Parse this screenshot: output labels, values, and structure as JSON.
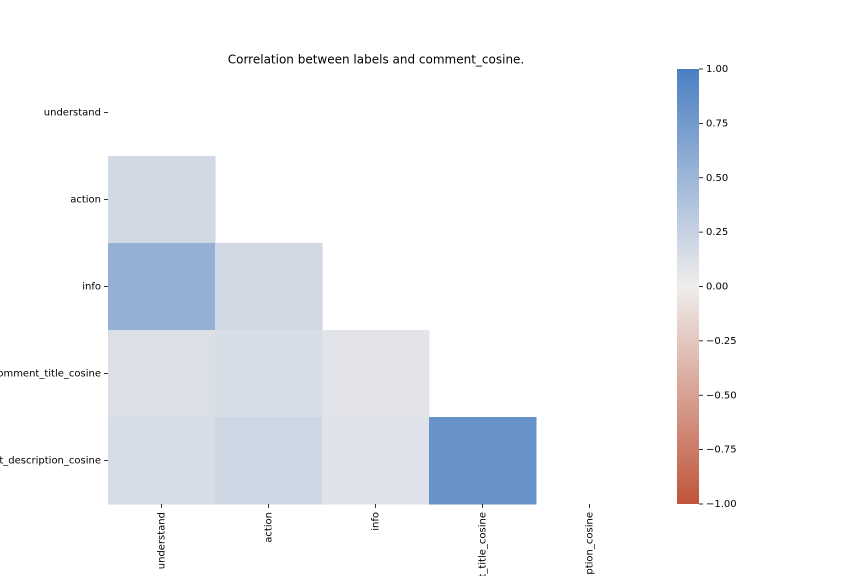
{
  "chart_data": {
    "type": "heatmap",
    "title": "Correlation between labels and comment_cosine.",
    "x_categories": [
      "understand",
      "action",
      "info",
      "t_title_cosine",
      "ption_cosine"
    ],
    "y_categories": [
      "understand",
      "action",
      "info",
      "omment_title_cosine",
      "t_description_cosine"
    ],
    "values": [
      [
        null,
        null,
        null,
        null,
        null
      ],
      [
        0.18,
        null,
        null,
        null,
        null
      ],
      [
        0.55,
        0.18,
        null,
        null,
        null
      ],
      [
        0.12,
        0.15,
        0.08,
        null,
        null
      ],
      [
        0.15,
        0.2,
        0.1,
        0.82,
        null
      ]
    ],
    "colormap": [
      "#c0553a",
      "#efedec",
      "#4a7fc3"
    ],
    "clim": [
      -1,
      1
    ],
    "cticks": [
      {
        "value": -1,
        "label": "−1.00"
      },
      {
        "value": -0.75,
        "label": "−0.75"
      },
      {
        "value": -0.5,
        "label": "−0.50"
      },
      {
        "value": -0.25,
        "label": "−0.25"
      },
      {
        "value": 0,
        "label": "0.00"
      },
      {
        "value": 0.25,
        "label": "0.25"
      },
      {
        "value": 0.5,
        "label": "0.50"
      },
      {
        "value": 0.75,
        "label": "0.75"
      },
      {
        "value": 1,
        "label": "1.00"
      }
    ]
  }
}
